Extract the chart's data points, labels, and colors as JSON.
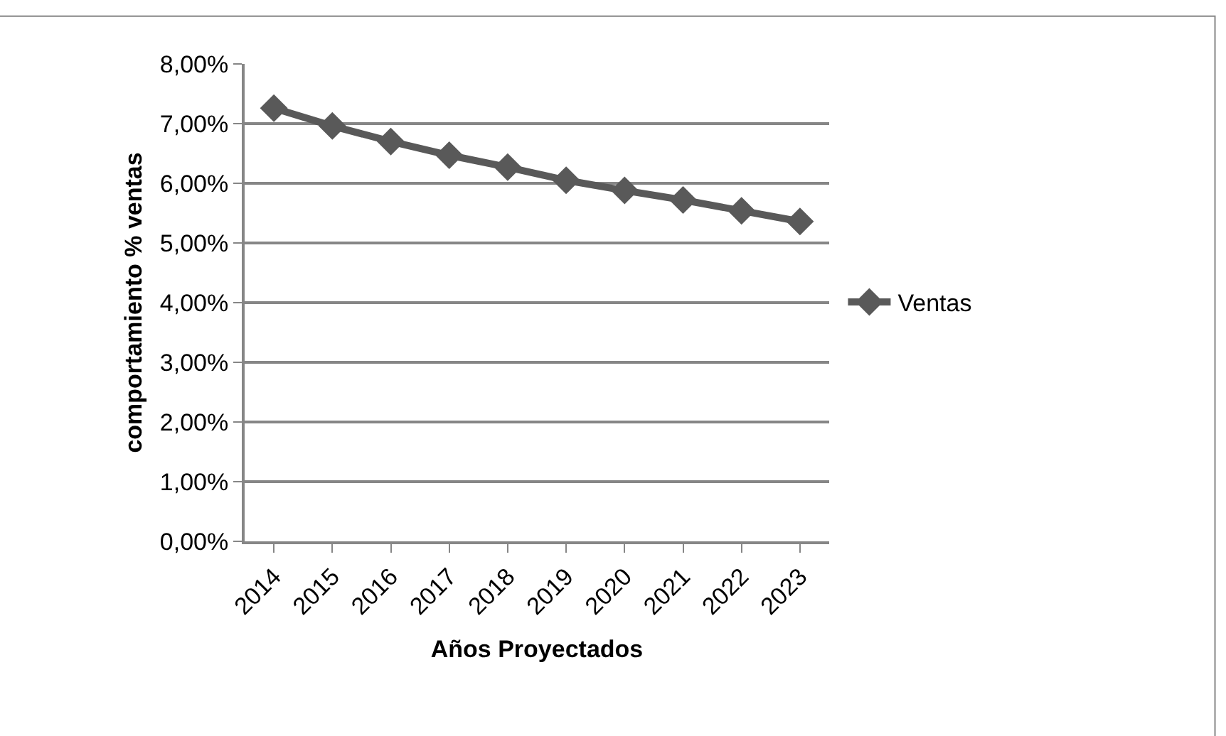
{
  "chart_data": {
    "type": "line",
    "xlabel": "Años Proyectados",
    "ylabel": "comportamiento % ventas",
    "categories": [
      "2014",
      "2015",
      "2016",
      "2017",
      "2018",
      "2019",
      "2020",
      "2021",
      "2022",
      "2023"
    ],
    "series": [
      {
        "name": "Ventas",
        "color": "#595959",
        "values": [
          7.26,
          6.96,
          6.7,
          6.47,
          6.27,
          6.05,
          5.88,
          5.72,
          5.54,
          5.36
        ]
      }
    ],
    "ylim": [
      0,
      8
    ],
    "yticks": [
      {
        "value": 0,
        "label": "0,00%"
      },
      {
        "value": 1,
        "label": "1,00%"
      },
      {
        "value": 2,
        "label": "2,00%"
      },
      {
        "value": 3,
        "label": "3,00%"
      },
      {
        "value": 4,
        "label": "4,00%"
      },
      {
        "value": 5,
        "label": "5,00%"
      },
      {
        "value": 6,
        "label": "6,00%"
      },
      {
        "value": 7,
        "label": "7,00%"
      },
      {
        "value": 8,
        "label": "8,00%"
      }
    ],
    "grid": "y",
    "legend": "right",
    "marker": "diamond",
    "line_style": "solid"
  }
}
